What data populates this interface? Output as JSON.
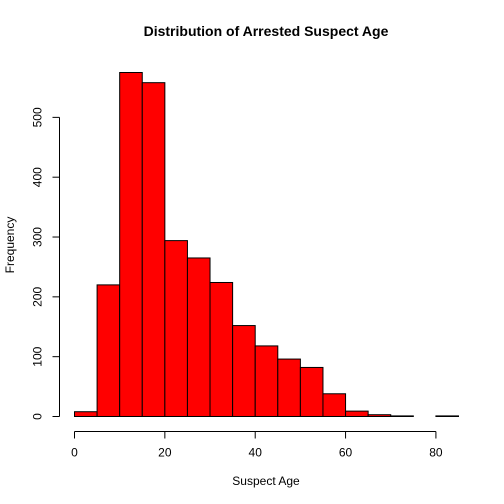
{
  "chart_data": {
    "type": "bar",
    "title": "Distribution of Arrested Suspect Age",
    "xlabel": "Suspect Age",
    "ylabel": "Frequency",
    "bin_edges": [
      0,
      5,
      10,
      15,
      20,
      25,
      30,
      35,
      40,
      45,
      50,
      55,
      60,
      65,
      70,
      75,
      80,
      85
    ],
    "values": [
      8,
      220,
      575,
      558,
      294,
      265,
      224,
      152,
      118,
      96,
      82,
      38,
      9,
      3,
      1,
      0,
      1
    ],
    "xlim": [
      0,
      85
    ],
    "ylim": [
      0,
      575
    ],
    "x_ticks": [
      0,
      20,
      40,
      60,
      80
    ],
    "y_ticks": [
      0,
      100,
      200,
      300,
      400,
      500
    ],
    "bar_color": "#FF0000",
    "grid": false
  }
}
